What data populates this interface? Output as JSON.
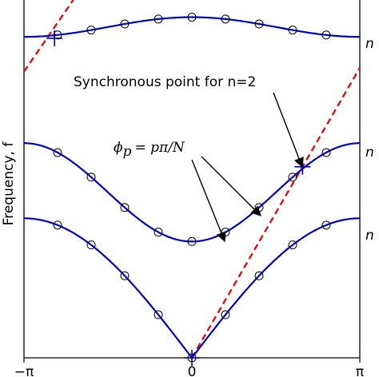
{
  "chart_data": {
    "type": "line",
    "title": "",
    "xlabel": "",
    "ylabel": "Frequency, f",
    "xlim": [
      -3.14159,
      3.14159
    ],
    "ylim": [
      0,
      1
    ],
    "x_ticks": [
      {
        "value": -3.14159,
        "label": "−π"
      },
      {
        "value": 0,
        "label": "0"
      },
      {
        "value": 3.14159,
        "label": "π"
      }
    ],
    "grid": false,
    "series": [
      {
        "kind": "dispersion",
        "color": "#0000cc",
        "mode": 1,
        "base": 0.0,
        "amp": 0.39,
        "shape": "abs_sin_half"
      },
      {
        "kind": "dispersion",
        "color": "#0000cc",
        "mode": 2,
        "base": 0.325,
        "amp": 0.275,
        "shape": "one_minus_cos"
      },
      {
        "kind": "dispersion",
        "color": "#0000cc",
        "mode": 3,
        "base": 0.897,
        "amp": 0.055,
        "shape": "one_plus_cos_neg"
      }
    ],
    "markers": {
      "phases": [
        -2.513,
        -1.885,
        -1.257,
        -0.628,
        0.0,
        0.628,
        1.257,
        1.885,
        2.513
      ],
      "style": "open-circle"
    },
    "light_lines": [
      {
        "name": "",
        "color": "#dd1111",
        "style": "dashed",
        "slope": 0.258,
        "x_from": 0,
        "x_to": 3.14159
      },
      {
        "name": "",
        "color": "#dd1111",
        "style": "dashed",
        "slope": -0.258,
        "x_from": -3.14159,
        "x_to": -2.4
      }
    ],
    "synchronous_points": [
      {
        "x": 0.0,
        "y": 0.0
      },
      {
        "x": 2.07,
        "y": 0.534
      },
      {
        "x": -2.57,
        "y": 0.893
      }
    ],
    "annotations": [
      {
        "id": "sync",
        "text": "Synchronous point for n=2",
        "target": {
          "x": 2.07,
          "y": 0.534
        }
      },
      {
        "id": "phi",
        "math": "ϕ",
        "sub": "p",
        "rhs": "= pπ/N",
        "targets": [
          {
            "x": 0.628,
            "y": 0.34
          },
          {
            "x": 1.257,
            "y": 0.445
          }
        ]
      }
    ],
    "mode_labels": [
      "n",
      "n",
      "n"
    ]
  }
}
